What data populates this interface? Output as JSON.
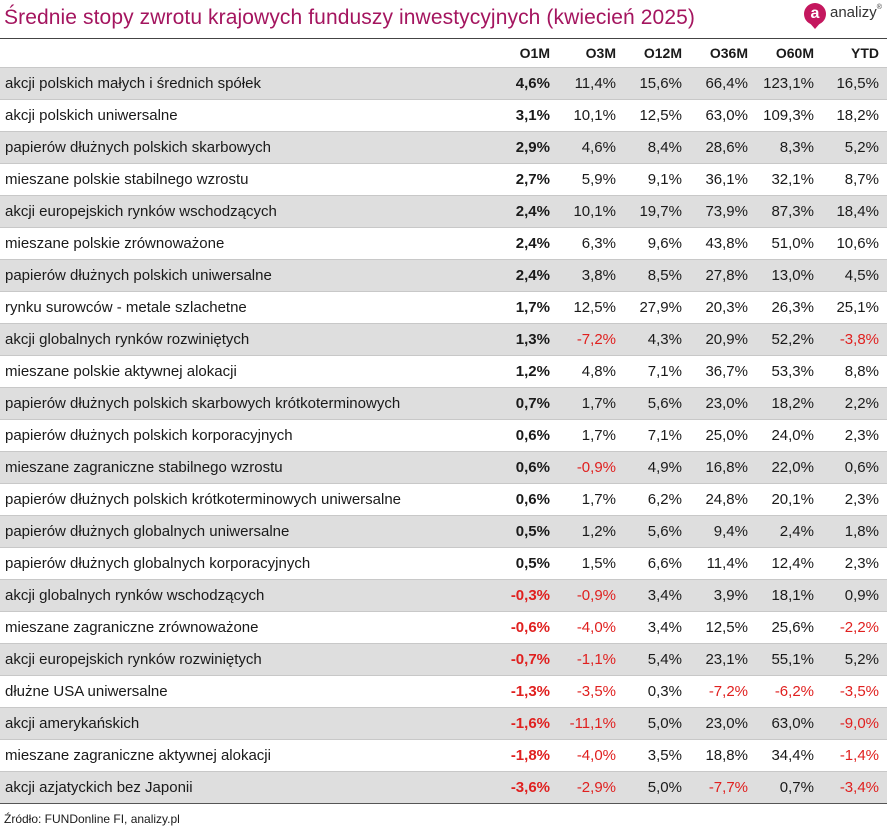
{
  "title": "Średnie stopy zwrotu krajowych funduszy inwestycyjnych (kwiecień 2025)",
  "logo": {
    "mark": "a",
    "text": "analizy",
    "registered": "®"
  },
  "source": "Źródło: FUNDonline FI, analizy.pl",
  "colors": {
    "title": "#a4155f",
    "negative": "#e0201f",
    "shaded_row": "#dedede",
    "logo": "#c4175e"
  },
  "chart_data": {
    "type": "table",
    "title": "Średnie stopy zwrotu krajowych funduszy inwestycyjnych (kwiecień 2025)",
    "columns": [
      "",
      "O1M",
      "O3M",
      "O12M",
      "O36M",
      "O60M",
      "YTD"
    ],
    "rows": [
      [
        "akcji polskich małych i średnich spółek",
        "4,6%",
        "11,4%",
        "15,6%",
        "66,4%",
        "123,1%",
        "16,5%"
      ],
      [
        "akcji polskich uniwersalne",
        "3,1%",
        "10,1%",
        "12,5%",
        "63,0%",
        "109,3%",
        "18,2%"
      ],
      [
        "papierów dłużnych polskich skarbowych",
        "2,9%",
        "4,6%",
        "8,4%",
        "28,6%",
        "8,3%",
        "5,2%"
      ],
      [
        "mieszane polskie stabilnego wzrostu",
        "2,7%",
        "5,9%",
        "9,1%",
        "36,1%",
        "32,1%",
        "8,7%"
      ],
      [
        "akcji europejskich rynków wschodzących",
        "2,4%",
        "10,1%",
        "19,7%",
        "73,9%",
        "87,3%",
        "18,4%"
      ],
      [
        "mieszane polskie zrównoważone",
        "2,4%",
        "6,3%",
        "9,6%",
        "43,8%",
        "51,0%",
        "10,6%"
      ],
      [
        "papierów dłużnych polskich uniwersalne",
        "2,4%",
        "3,8%",
        "8,5%",
        "27,8%",
        "13,0%",
        "4,5%"
      ],
      [
        "rynku surowców - metale szlachetne",
        "1,7%",
        "12,5%",
        "27,9%",
        "20,3%",
        "26,3%",
        "25,1%"
      ],
      [
        "akcji globalnych rynków rozwiniętych",
        "1,3%",
        "-7,2%",
        "4,3%",
        "20,9%",
        "52,2%",
        "-3,8%"
      ],
      [
        "mieszane polskie aktywnej alokacji",
        "1,2%",
        "4,8%",
        "7,1%",
        "36,7%",
        "53,3%",
        "8,8%"
      ],
      [
        "papierów dłużnych polskich skarbowych krótkoterminowych",
        "0,7%",
        "1,7%",
        "5,6%",
        "23,0%",
        "18,2%",
        "2,2%"
      ],
      [
        "papierów dłużnych polskich korporacyjnych",
        "0,6%",
        "1,7%",
        "7,1%",
        "25,0%",
        "24,0%",
        "2,3%"
      ],
      [
        "mieszane zagraniczne stabilnego wzrostu",
        "0,6%",
        "-0,9%",
        "4,9%",
        "16,8%",
        "22,0%",
        "0,6%"
      ],
      [
        "papierów dłużnych polskich krótkoterminowych uniwersalne",
        "0,6%",
        "1,7%",
        "6,2%",
        "24,8%",
        "20,1%",
        "2,3%"
      ],
      [
        "papierów dłużnych globalnych uniwersalne",
        "0,5%",
        "1,2%",
        "5,6%",
        "9,4%",
        "2,4%",
        "1,8%"
      ],
      [
        "papierów dłużnych globalnych korporacyjnych",
        "0,5%",
        "1,5%",
        "6,6%",
        "11,4%",
        "12,4%",
        "2,3%"
      ],
      [
        "akcji globalnych rynków wschodzących",
        "-0,3%",
        "-0,9%",
        "3,4%",
        "3,9%",
        "18,1%",
        "0,9%"
      ],
      [
        "mieszane zagraniczne zrównoważone",
        "-0,6%",
        "-4,0%",
        "3,4%",
        "12,5%",
        "25,6%",
        "-2,2%"
      ],
      [
        "akcji europejskich rynków rozwiniętych",
        "-0,7%",
        "-1,1%",
        "5,4%",
        "23,1%",
        "55,1%",
        "5,2%"
      ],
      [
        "dłużne USA uniwersalne",
        "-1,3%",
        "-3,5%",
        "0,3%",
        "-7,2%",
        "-6,2%",
        "-3,5%"
      ],
      [
        "akcji amerykańskich",
        "-1,6%",
        "-11,1%",
        "5,0%",
        "23,0%",
        "63,0%",
        "-9,0%"
      ],
      [
        "mieszane zagraniczne aktywnej alokacji",
        "-1,8%",
        "-4,0%",
        "3,5%",
        "18,8%",
        "34,4%",
        "-1,4%"
      ],
      [
        "akcji azjatyckich bez Japonii",
        "-3,6%",
        "-2,9%",
        "5,0%",
        "-7,7%",
        "0,7%",
        "-3,4%"
      ]
    ]
  }
}
